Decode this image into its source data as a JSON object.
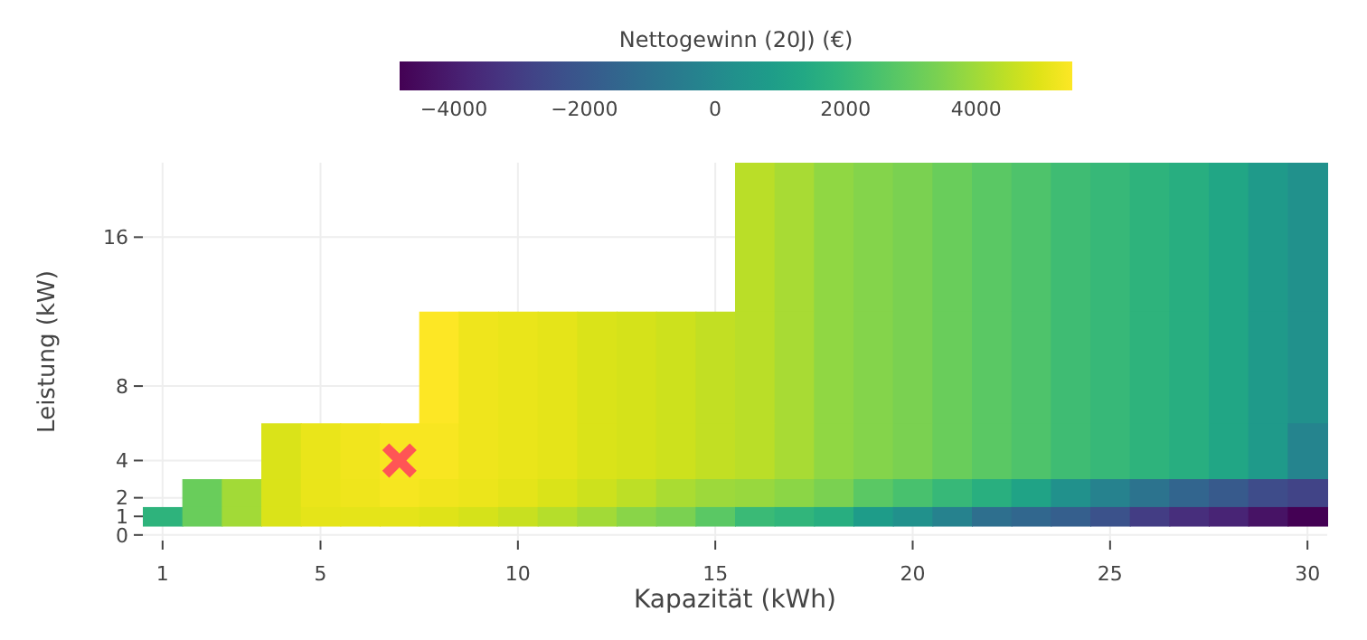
{
  "chart_data": {
    "type": "heatmap",
    "clabel": "Nettogewinn (20J) (€)",
    "xlabel": "Kapazität (kWh)",
    "ylabel": "Leistung (kW)",
    "x": [
      1,
      2,
      3,
      4,
      5,
      6,
      7,
      8,
      9,
      10,
      11,
      12,
      13,
      14,
      15,
      16,
      17,
      18,
      19,
      20,
      21,
      22,
      23,
      24,
      25,
      26,
      27,
      28,
      29,
      30
    ],
    "y": [
      16,
      8,
      4,
      2,
      1
    ],
    "cells": [
      [
        null,
        null,
        null,
        null,
        null,
        null,
        null,
        null,
        null,
        null,
        null,
        null,
        null,
        null,
        null,
        4390,
        4130,
        3770,
        3560,
        3410,
        3100,
        2840,
        2590,
        2280,
        2070,
        1810,
        1610,
        1250,
        730,
        320
      ],
      [
        null,
        null,
        null,
        null,
        null,
        null,
        null,
        5470,
        5210,
        5110,
        5060,
        4900,
        4800,
        4700,
        4540,
        4390,
        4130,
        3770,
        3560,
        3410,
        3100,
        2840,
        2590,
        2280,
        2070,
        1810,
        1610,
        1250,
        730,
        320
      ],
      [
        null,
        null,
        null,
        4900,
        5110,
        5260,
        5370,
        5370,
        5210,
        5110,
        5060,
        4900,
        4800,
        4700,
        4540,
        4390,
        4130,
        3770,
        3560,
        3410,
        3100,
        2840,
        2590,
        2280,
        2070,
        1810,
        1610,
        1250,
        730,
        -200
      ],
      [
        null,
        3100,
        4030,
        4900,
        5110,
        5210,
        5320,
        5260,
        5160,
        5060,
        4900,
        4700,
        4440,
        4180,
        3980,
        3870,
        3670,
        3410,
        2840,
        2480,
        2070,
        1660,
        1140,
        320,
        -300,
        -920,
        -1530,
        -1950,
        -2460,
        -2770
      ],
      [
        1810,
        3100,
        4030,
        4900,
        5060,
        5060,
        5060,
        4960,
        4800,
        4590,
        4340,
        4030,
        3620,
        3410,
        2840,
        2170,
        1920,
        1610,
        840,
        320,
        -300,
        -1120,
        -1430,
        -1740,
        -2250,
        -2980,
        -3490,
        -3800,
        -4320,
        -4830
      ]
    ],
    "clim": [
      -4830,
      5470
    ],
    "cticks": [
      {
        "value": -4000,
        "label": "−4000"
      },
      {
        "value": -2000,
        "label": "−2000"
      },
      0,
      2000,
      4000
    ],
    "xlim": [
      0.5,
      30.5
    ],
    "xticks": [
      1,
      5,
      10,
      15,
      20,
      25,
      30
    ],
    "ylim": [
      -0.3,
      20
    ],
    "yticks": [
      0,
      1,
      2,
      4,
      8,
      16
    ],
    "grid": true,
    "series": [
      {
        "type": "scatter",
        "x": [
          7
        ],
        "values": [
          4
        ],
        "color": "#ff5555",
        "marker": "cross"
      }
    ]
  }
}
